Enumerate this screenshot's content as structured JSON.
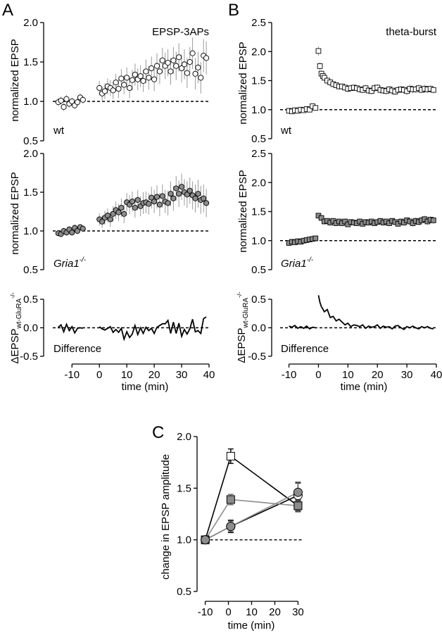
{
  "panel_letters": {
    "A": "A",
    "B": "B",
    "C": "C"
  },
  "panel_texts": {
    "A_title": "EPSP-3APs",
    "B_title": "theta-burst",
    "wt": "wt",
    "gria_base": "Gria1",
    "gria_sup": "-/-",
    "difference": "Difference",
    "ylabel_norm": "normalized EPSP",
    "ylabel_diff_main": "ΔEPSP",
    "ylabel_diff_sub": "wt-GluRA",
    "ylabel_diff_sup": "-/-",
    "xlabel": "time (min)",
    "ylabel_C": "change in EPSP amplitude"
  },
  "colors": {
    "wt_fill": "#ffffff",
    "gria_fill": "#8c8c8c",
    "line": "#000000",
    "error": "#9a9a9a",
    "c_wt_line": "#000000",
    "c_gria_line": "#8c8c8c"
  },
  "chart_data": [
    {
      "id": "A-wt",
      "type": "scatter",
      "marker": "circle",
      "fill": "white",
      "xlim": [
        -17,
        40
      ],
      "ylim": [
        0.5,
        2.0
      ],
      "yticks": [
        "0.5",
        "1.0",
        "1.5",
        "2.0"
      ],
      "baseline": 1.0,
      "series": [
        {
          "x": [
            -15,
            -14,
            -13,
            -12,
            -11,
            -10,
            -9,
            -8,
            -7,
            -6,
            0,
            1,
            2,
            3,
            4,
            5,
            6,
            7,
            8,
            9,
            10,
            11,
            12,
            13,
            14,
            15,
            16,
            17,
            18,
            19,
            20,
            21,
            22,
            23,
            24,
            25,
            26,
            27,
            28,
            29,
            30,
            31,
            32,
            33,
            34,
            35,
            36,
            37,
            38,
            39
          ],
          "y": [
            0.99,
            1.01,
            0.93,
            1.03,
            0.97,
            1.0,
            0.95,
            0.99,
            1.05,
            1.02,
            1.17,
            1.1,
            1.13,
            1.19,
            1.17,
            1.14,
            1.24,
            1.16,
            1.29,
            1.21,
            1.3,
            1.17,
            1.27,
            1.34,
            1.28,
            1.32,
            1.26,
            1.38,
            1.3,
            1.42,
            1.28,
            1.45,
            1.38,
            1.52,
            1.45,
            1.49,
            1.38,
            1.52,
            1.45,
            1.56,
            1.42,
            1.47,
            1.36,
            1.5,
            1.61,
            1.35,
            1.43,
            1.3,
            1.58,
            1.55
          ],
          "err": [
            0.05,
            0.05,
            0.05,
            0.05,
            0.05,
            0.05,
            0.05,
            0.05,
            0.05,
            0.05,
            0.09,
            0.09,
            0.1,
            0.1,
            0.1,
            0.11,
            0.11,
            0.12,
            0.12,
            0.12,
            0.13,
            0.13,
            0.13,
            0.14,
            0.14,
            0.14,
            0.14,
            0.15,
            0.15,
            0.15,
            0.15,
            0.16,
            0.16,
            0.16,
            0.17,
            0.17,
            0.17,
            0.17,
            0.18,
            0.18,
            0.18,
            0.19,
            0.19,
            0.19,
            0.2,
            0.2,
            0.2,
            0.2,
            0.21,
            0.21
          ]
        }
      ]
    },
    {
      "id": "A-gria",
      "type": "scatter",
      "marker": "circle",
      "fill": "gray",
      "xlim": [
        -17,
        40
      ],
      "ylim": [
        0.5,
        2.0
      ],
      "yticks": [
        "0.5",
        "1.0",
        "1.5",
        "2.0"
      ],
      "baseline": 1.0,
      "series": [
        {
          "x": [
            -15,
            -14,
            -13,
            -12,
            -11,
            -10,
            -9,
            -8,
            -7,
            -6,
            0,
            1,
            2,
            3,
            4,
            5,
            6,
            7,
            8,
            9,
            10,
            11,
            12,
            13,
            14,
            15,
            16,
            17,
            18,
            19,
            20,
            21,
            22,
            23,
            24,
            25,
            26,
            27,
            28,
            29,
            30,
            31,
            32,
            33,
            34,
            35,
            36,
            37,
            38,
            39
          ],
          "y": [
            0.97,
            0.96,
            1.0,
            0.98,
            1.02,
            0.98,
            1.04,
            1.0,
            1.05,
            1.03,
            1.15,
            1.12,
            1.17,
            1.2,
            1.15,
            1.22,
            1.27,
            1.24,
            1.3,
            1.22,
            1.37,
            1.34,
            1.38,
            1.3,
            1.4,
            1.32,
            1.36,
            1.37,
            1.35,
            1.43,
            1.38,
            1.44,
            1.34,
            1.45,
            1.38,
            1.36,
            1.48,
            1.42,
            1.55,
            1.48,
            1.57,
            1.5,
            1.47,
            1.52,
            1.46,
            1.42,
            1.48,
            1.4,
            1.42,
            1.36
          ],
          "err": [
            0.04,
            0.04,
            0.04,
            0.04,
            0.04,
            0.04,
            0.04,
            0.04,
            0.04,
            0.04,
            0.08,
            0.08,
            0.09,
            0.09,
            0.1,
            0.1,
            0.11,
            0.11,
            0.12,
            0.12,
            0.12,
            0.12,
            0.13,
            0.13,
            0.13,
            0.13,
            0.14,
            0.14,
            0.14,
            0.14,
            0.15,
            0.15,
            0.15,
            0.15,
            0.15,
            0.16,
            0.16,
            0.16,
            0.16,
            0.17,
            0.17,
            0.17,
            0.17,
            0.17,
            0.18,
            0.18,
            0.18,
            0.18,
            0.18,
            0.18
          ]
        }
      ]
    },
    {
      "id": "A-diff",
      "type": "line",
      "xlim": [
        -17,
        40
      ],
      "ylim": [
        -0.5,
        0.5
      ],
      "xticks": [
        "-10",
        "0",
        "10",
        "20",
        "30",
        "40"
      ],
      "yticks": [
        "-0.5",
        "0.0",
        "0.5"
      ],
      "baseline": 0.0,
      "series": [
        {
          "x": [
            -15,
            -14,
            -13,
            -12,
            -11,
            -10,
            -9,
            -8,
            -7,
            -6,
            "break",
            0,
            1,
            2,
            3,
            4,
            5,
            6,
            7,
            8,
            9,
            10,
            11,
            12,
            13,
            14,
            15,
            16,
            17,
            18,
            19,
            20,
            21,
            22,
            23,
            24,
            25,
            26,
            27,
            28,
            29,
            30,
            31,
            32,
            33,
            34,
            35,
            36,
            37,
            38,
            39
          ],
          "y": [
            0.01,
            0.05,
            -0.07,
            0.06,
            -0.05,
            0.02,
            -0.09,
            -0.01,
            0.0,
            -0.01,
            null,
            0.02,
            -0.02,
            -0.04,
            -0.01,
            0.02,
            -0.08,
            -0.03,
            -0.08,
            -0.01,
            -0.2,
            -0.07,
            -0.17,
            -0.11,
            0.04,
            -0.12,
            0.0,
            -0.1,
            0.01,
            -0.05,
            -0.01,
            -0.1,
            0.01,
            0.04,
            0.07,
            0.07,
            0.13,
            -0.1,
            0.1,
            -0.1,
            0.08,
            -0.15,
            -0.03,
            -0.11,
            -0.02,
            0.15,
            -0.07,
            -0.05,
            -0.1,
            0.16,
            0.19
          ]
        }
      ]
    },
    {
      "id": "B-wt",
      "type": "scatter",
      "marker": "square",
      "fill": "white",
      "xlim": [
        -13,
        40
      ],
      "ylim": [
        0.5,
        2.5
      ],
      "yticks": [
        "0.5",
        "1.0",
        "1.5",
        "2.0",
        "2.5"
      ],
      "baseline": 1.0,
      "series": [
        {
          "x": [
            -10,
            -9,
            -8,
            -7,
            -6,
            -5,
            -4,
            -3,
            -2,
            -1,
            0,
            0.5,
            1,
            1.5,
            2,
            3,
            4,
            5,
            6,
            7,
            8,
            9,
            10,
            11,
            12,
            13,
            14,
            15,
            16,
            17,
            18,
            19,
            20,
            21,
            22,
            23,
            24,
            25,
            26,
            27,
            28,
            29,
            30,
            31,
            32,
            33,
            34,
            35,
            36,
            37,
            38,
            39
          ],
          "y": [
            0.98,
            0.97,
            0.99,
            0.98,
            1.0,
            0.99,
            1.01,
            1.0,
            1.06,
            1.03,
            2.01,
            1.75,
            1.62,
            1.58,
            1.55,
            1.5,
            1.47,
            1.44,
            1.42,
            1.4,
            1.4,
            1.38,
            1.36,
            1.37,
            1.38,
            1.37,
            1.35,
            1.34,
            1.37,
            1.33,
            1.32,
            1.37,
            1.38,
            1.34,
            1.33,
            1.32,
            1.35,
            1.33,
            1.31,
            1.34,
            1.35,
            1.34,
            1.32,
            1.36,
            1.35,
            1.35,
            1.37,
            1.34,
            1.36,
            1.35,
            1.36,
            1.34
          ],
          "err": [
            0.03,
            0.03,
            0.03,
            0.03,
            0.03,
            0.03,
            0.03,
            0.03,
            0.05,
            0.05,
            0.08,
            0.07,
            0.06,
            0.06,
            0.06,
            0.06,
            0.05,
            0.05,
            0.05,
            0.05,
            0.05,
            0.05,
            0.06,
            0.05,
            0.05,
            0.05,
            0.05,
            0.06,
            0.06,
            0.06,
            0.06,
            0.07,
            0.06,
            0.06,
            0.06,
            0.06,
            0.06,
            0.07,
            0.06,
            0.06,
            0.06,
            0.07,
            0.07,
            0.07,
            0.07,
            0.06,
            0.06,
            0.06,
            0.07,
            0.06,
            0.06,
            0.06
          ]
        }
      ]
    },
    {
      "id": "B-gria",
      "type": "scatter",
      "marker": "square",
      "fill": "gray",
      "xlim": [
        -13,
        40
      ],
      "ylim": [
        0.5,
        2.5
      ],
      "yticks": [
        "0.5",
        "1.0",
        "1.5",
        "2.0",
        "2.5"
      ],
      "baseline": 1.0,
      "series": [
        {
          "x": [
            -10,
            -9,
            -8,
            -7,
            -6,
            -5,
            -4,
            -3,
            -2,
            -1,
            0,
            1,
            2,
            3,
            4,
            5,
            6,
            7,
            8,
            9,
            10,
            11,
            12,
            13,
            14,
            15,
            16,
            17,
            18,
            19,
            20,
            21,
            22,
            23,
            24,
            25,
            26,
            27,
            28,
            29,
            30,
            31,
            32,
            33,
            34,
            35,
            36,
            37,
            38,
            39
          ],
          "y": [
            0.96,
            0.98,
            0.97,
            0.99,
            0.98,
            1.0,
            1.01,
            1.02,
            1.03,
            1.04,
            1.43,
            1.39,
            1.33,
            1.34,
            1.31,
            1.34,
            1.3,
            1.33,
            1.3,
            1.33,
            1.28,
            1.32,
            1.31,
            1.3,
            1.33,
            1.29,
            1.32,
            1.31,
            1.33,
            1.3,
            1.32,
            1.34,
            1.31,
            1.33,
            1.3,
            1.34,
            1.32,
            1.29,
            1.33,
            1.31,
            1.35,
            1.33,
            1.3,
            1.34,
            1.32,
            1.35,
            1.37,
            1.33,
            1.36,
            1.35
          ],
          "err": [
            0.03,
            0.03,
            0.03,
            0.03,
            0.03,
            0.03,
            0.03,
            0.03,
            0.03,
            0.03,
            0.05,
            0.05,
            0.05,
            0.05,
            0.05,
            0.05,
            0.05,
            0.05,
            0.05,
            0.05,
            0.05,
            0.05,
            0.05,
            0.05,
            0.05,
            0.05,
            0.05,
            0.05,
            0.05,
            0.05,
            0.05,
            0.05,
            0.05,
            0.05,
            0.05,
            0.05,
            0.05,
            0.05,
            0.05,
            0.05,
            0.05,
            0.06,
            0.06,
            0.06,
            0.06,
            0.06,
            0.06,
            0.06,
            0.06,
            0.06
          ]
        }
      ]
    },
    {
      "id": "B-diff",
      "type": "line",
      "xlim": [
        -13,
        40
      ],
      "ylim": [
        -0.5,
        0.5
      ],
      "xticks": [
        "-10",
        "0",
        "10",
        "20",
        "30",
        "40"
      ],
      "yticks": [
        "-0.5",
        "0.0",
        "0.5"
      ],
      "baseline": 0.0,
      "series": [
        {
          "x": [
            -10,
            -9,
            -8,
            -7,
            -6,
            -5,
            -4,
            -3,
            -2,
            -1,
            "break",
            0,
            0.5,
            1,
            1.5,
            2,
            3,
            4,
            5,
            6,
            7,
            8,
            9,
            10,
            11,
            12,
            13,
            14,
            15,
            16,
            17,
            18,
            19,
            20,
            21,
            22,
            23,
            24,
            25,
            26,
            27,
            28,
            29,
            30,
            31,
            32,
            33,
            34,
            35,
            36,
            37,
            38,
            39
          ],
          "y": [
            0.03,
            0.01,
            0.04,
            -0.01,
            0.02,
            -0.01,
            0.03,
            -0.02,
            0.01,
            0.0,
            null,
            0.57,
            0.45,
            0.37,
            0.33,
            0.28,
            0.32,
            0.18,
            0.2,
            0.12,
            0.15,
            0.1,
            0.05,
            0.08,
            0.02,
            0.05,
            0.04,
            0.02,
            0.05,
            -0.01,
            0.03,
            0.01,
            0.02,
            0.05,
            -0.01,
            0.03,
            0.01,
            0.02,
            -0.02,
            0.03,
            0.04,
            0.0,
            -0.03,
            0.02,
            0.0,
            0.03,
            0.0,
            -0.02,
            0.02,
            0.0,
            0.02,
            -0.01,
            -0.02
          ]
        }
      ]
    },
    {
      "id": "C",
      "type": "line",
      "xlim": [
        -12,
        32
      ],
      "ylim": [
        0.5,
        2.0
      ],
      "xticks": [
        "-10",
        "0",
        "10",
        "20",
        "30"
      ],
      "yticks": [
        "0.5",
        "1.0",
        "1.5",
        "2.0"
      ],
      "baseline": 1.0,
      "series": [
        {
          "marker": "square",
          "fill": "white",
          "line": "black",
          "x": [
            -10,
            1,
            30
          ],
          "y": [
            1.0,
            1.81,
            1.33
          ],
          "err": [
            0.0,
            0.07,
            0.05
          ]
        },
        {
          "marker": "circle",
          "fill": "white",
          "line": "black",
          "x": [
            -10,
            1,
            30
          ],
          "y": [
            1.0,
            1.13,
            1.43
          ],
          "err": [
            0.0,
            0.06,
            0.12
          ]
        },
        {
          "marker": "square",
          "fill": "gray",
          "line": "gray",
          "x": [
            -10,
            1,
            30
          ],
          "y": [
            1.0,
            1.39,
            1.33
          ],
          "err": [
            0.0,
            0.05,
            0.06
          ]
        },
        {
          "marker": "circle",
          "fill": "gray",
          "line": "gray",
          "x": [
            -10,
            1,
            30
          ],
          "y": [
            1.0,
            1.13,
            1.46
          ],
          "err": [
            0.0,
            0.05,
            0.1
          ]
        }
      ]
    }
  ]
}
